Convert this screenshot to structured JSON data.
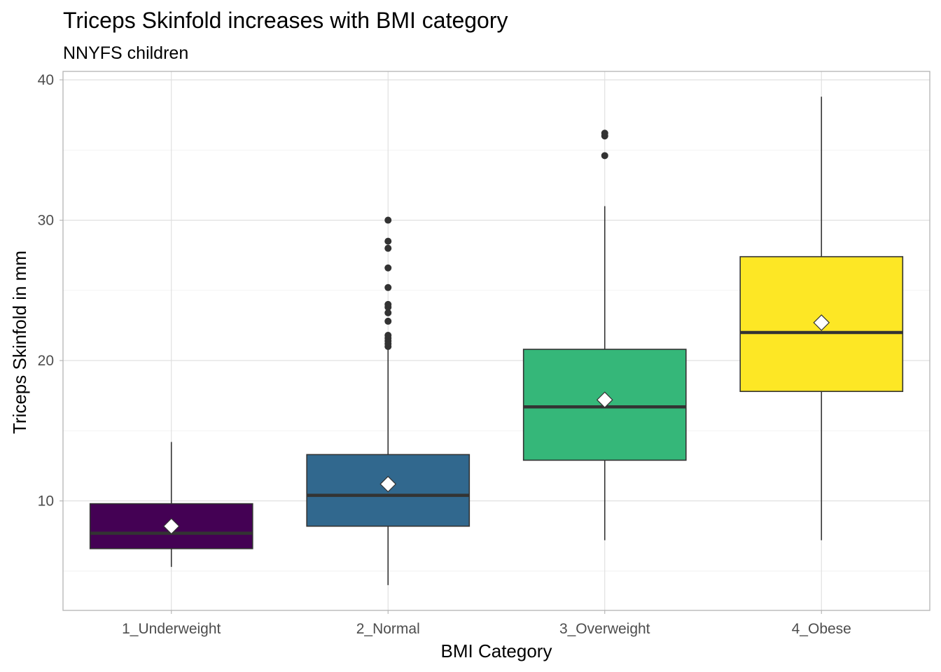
{
  "chart_data": {
    "type": "boxplot",
    "title": "Triceps Skinfold increases with BMI category",
    "subtitle": "NNYFS children",
    "xlabel": "BMI Category",
    "ylabel": "Triceps Skinfold in mm",
    "ylim": [
      2.2,
      40.6
    ],
    "y_ticks": [
      10,
      20,
      30,
      40
    ],
    "grid": true,
    "legend": "none",
    "categories": [
      "1_Underweight",
      "2_Normal",
      "3_Overweight",
      "4_Obese"
    ],
    "colors": [
      "#440154",
      "#31688E",
      "#35B779",
      "#FDE725"
    ],
    "mean_marker_color": "#ffffff",
    "series": [
      {
        "category": "1_Underweight",
        "whisker_low": 5.3,
        "q1": 6.6,
        "median": 7.7,
        "q3": 9.8,
        "whisker_high": 14.2,
        "mean": 8.2,
        "outliers": []
      },
      {
        "category": "2_Normal",
        "whisker_low": 4.0,
        "q1": 8.2,
        "median": 10.4,
        "q3": 13.3,
        "whisker_high": 20.9,
        "mean": 11.2,
        "outliers": [
          21.0,
          21.2,
          21.4,
          21.6,
          21.8,
          22.8,
          23.4,
          23.8,
          24.0,
          25.2,
          26.6,
          28.0,
          28.5,
          30.0
        ]
      },
      {
        "category": "3_Overweight",
        "whisker_low": 7.2,
        "q1": 12.9,
        "median": 16.7,
        "q3": 20.8,
        "whisker_high": 31.0,
        "mean": 17.2,
        "outliers": [
          34.6,
          36.0,
          36.2
        ]
      },
      {
        "category": "4_Obese",
        "whisker_low": 7.2,
        "q1": 17.8,
        "median": 22.0,
        "q3": 27.4,
        "whisker_high": 38.8,
        "mean": 22.7,
        "outliers": []
      }
    ]
  }
}
